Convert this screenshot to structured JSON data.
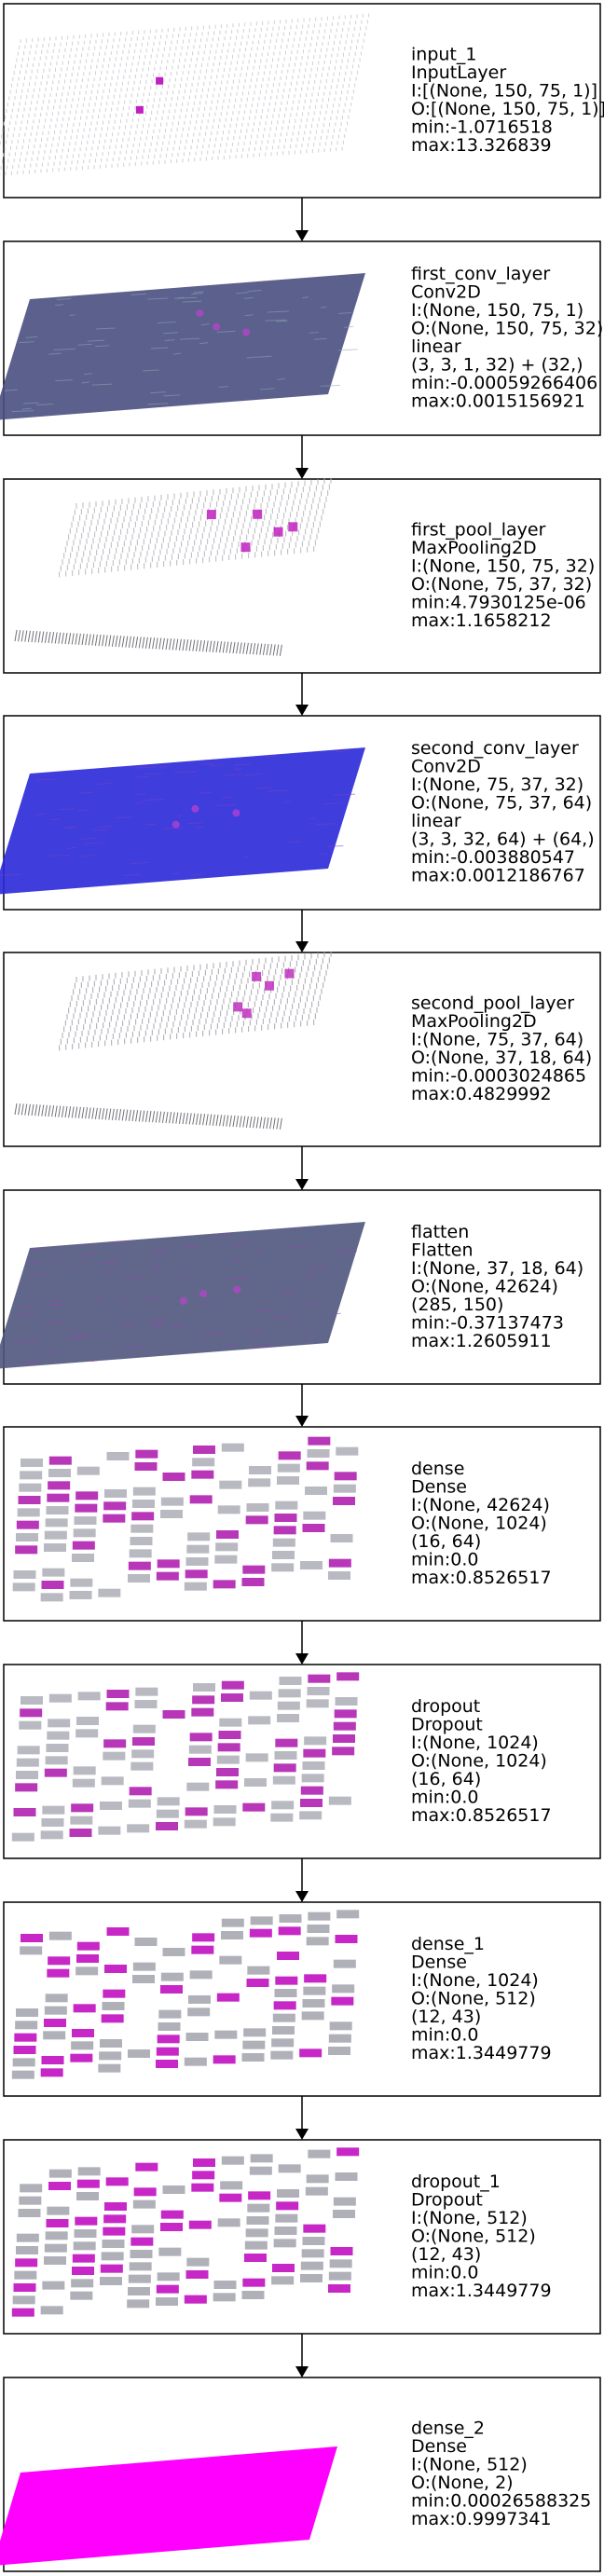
{
  "layers": [
    {
      "lines": [
        "input_1",
        "InputLayer",
        "I:[(None, 150, 75, 1)]",
        "O:[(None, 150, 75, 1)]",
        "min:-1.0716518",
        "max:13.326839"
      ],
      "style": "sparse",
      "base_color": "#d0d0d8",
      "accent_color": "#c020c0"
    },
    {
      "lines": [
        "first_conv_layer",
        "Conv2D",
        "I:(None, 150, 75, 1)",
        "O:(None, 150, 75, 32)",
        "linear",
        "(3, 3, 1, 32) + (32,)",
        "min:-0.00059266406",
        "max:0.0015156921"
      ],
      "style": "dense",
      "base_color": "#4a4f80",
      "accent_color": "#8aa8b8"
    },
    {
      "lines": [
        "first_pool_layer",
        "MaxPooling2D",
        "I:(None, 150, 75, 32)",
        "O:(None, 75, 37, 32)",
        "min:4.7930125e-06",
        "max:1.1658212"
      ],
      "style": "pool",
      "base_color": "#b8b8c0",
      "accent_color": "#c020c0"
    },
    {
      "lines": [
        "second_conv_layer",
        "Conv2D",
        "I:(None, 75, 37, 32)",
        "O:(None, 75, 37, 64)",
        "linear",
        "(3, 3, 32, 64) + (64,)",
        "min:-0.003880547",
        "max:0.0012186767"
      ],
      "style": "dense",
      "base_color": "#2a28d8",
      "accent_color": "#7a40c8"
    },
    {
      "lines": [
        "second_pool_layer",
        "MaxPooling2D",
        "I:(None, 75, 37, 64)",
        "O:(None, 37, 18, 64)",
        "min:-0.0003024865",
        "max:0.4829992"
      ],
      "style": "pool",
      "base_color": "#a8a8b0",
      "accent_color": "#c030c0"
    },
    {
      "lines": [
        "flatten",
        "Flatten",
        "I:(None, 37, 18, 64)",
        "O:(None, 42624)",
        "(285, 150)",
        "min:-0.37137473",
        "max:1.2605911"
      ],
      "style": "dense",
      "base_color": "#50567e",
      "accent_color": "#9a40b0"
    },
    {
      "lines": [
        "dense",
        "Dense",
        "I:(None, 42624)",
        "O:(None, 1024)",
        "(16, 64)",
        "min:0.0",
        "max:0.8526517"
      ],
      "style": "checker",
      "base_color": "#808090",
      "accent_color": "#b020b0"
    },
    {
      "lines": [
        "dropout",
        "Dropout",
        "I:(None, 1024)",
        "O:(None, 1024)",
        "(16, 64)",
        "min:0.0",
        "max:0.8526517"
      ],
      "style": "checker",
      "base_color": "#808090",
      "accent_color": "#b020b0"
    },
    {
      "lines": [
        "dense_1",
        "Dense",
        "I:(None, 1024)",
        "O:(None, 512)",
        "(12, 43)",
        "min:0.0",
        "max:1.3449779"
      ],
      "style": "checker",
      "base_color": "#707080",
      "accent_color": "#c010c0"
    },
    {
      "lines": [
        "dropout_1",
        "Dropout",
        "I:(None, 512)",
        "O:(None, 512)",
        "(12, 43)",
        "min:0.0",
        "max:1.3449779"
      ],
      "style": "checker",
      "base_color": "#707080",
      "accent_color": "#c010c0"
    },
    {
      "lines": [
        "dense_2",
        "Dense",
        "I:(None, 512)",
        "O:(None, 2)",
        "min:0.00026588325",
        "max:0.9997341"
      ],
      "style": "solid",
      "base_color": "#ff00ff",
      "accent_color": "#ff00ff"
    }
  ]
}
